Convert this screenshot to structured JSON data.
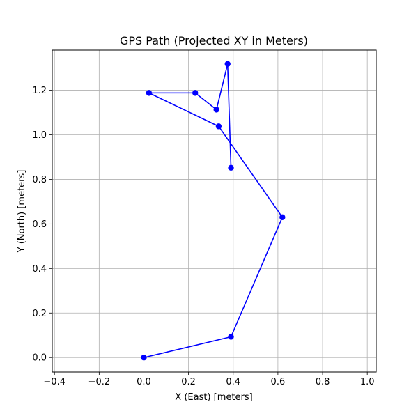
{
  "chart_data": {
    "type": "line",
    "title": "GPS Path (Projected XY in Meters)",
    "xlabel": "X (East) [meters]",
    "ylabel": "Y (North) [meters]",
    "xlim": [
      -0.41,
      1.04
    ],
    "ylim": [
      -0.065,
      1.38
    ],
    "xticks": [
      -0.4,
      -0.2,
      0.0,
      0.2,
      0.4,
      0.6,
      0.8,
      1.0
    ],
    "yticks": [
      0.0,
      0.2,
      0.4,
      0.6,
      0.8,
      1.0,
      1.2
    ],
    "xtick_labels": [
      "−0.4",
      "−0.2",
      "0.0",
      "0.2",
      "0.4",
      "0.6",
      "0.8",
      "1.0"
    ],
    "ytick_labels": [
      "0.0",
      "0.2",
      "0.4",
      "0.6",
      "0.8",
      "1.0",
      "1.2"
    ],
    "grid": true,
    "equal_aspect": true,
    "series": [
      {
        "color": "#0000ff",
        "marker": "circle",
        "points": [
          {
            "x": 0.0,
            "y": 0.0
          },
          {
            "x": 0.39,
            "y": 0.093
          },
          {
            "x": 0.62,
            "y": 0.63
          },
          {
            "x": 0.335,
            "y": 1.038
          },
          {
            "x": 0.023,
            "y": 1.188
          },
          {
            "x": 0.23,
            "y": 1.188
          },
          {
            "x": 0.325,
            "y": 1.113
          },
          {
            "x": 0.375,
            "y": 1.318
          },
          {
            "x": 0.39,
            "y": 0.852
          }
        ]
      }
    ]
  }
}
